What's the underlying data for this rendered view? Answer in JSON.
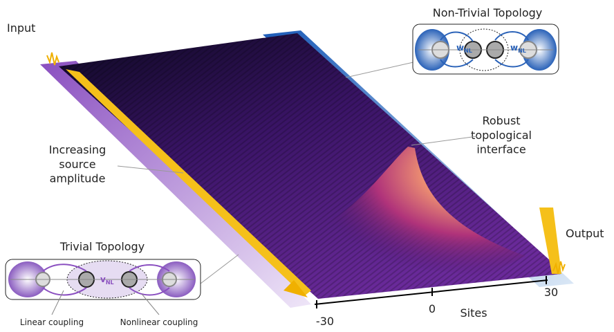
{
  "labels": {
    "input": "Input",
    "output": "Output",
    "interface": [
      "Robust",
      "topological",
      "interface"
    ],
    "amplitude": [
      "Increasing",
      "source",
      "amplitude"
    ]
  },
  "nontrivial": {
    "title": "Non-Trivial Topology",
    "coupling": {
      "main": "w",
      "sub": "NL"
    }
  },
  "trivial": {
    "title": "Trivial Topology",
    "coupling": {
      "main": "v",
      "sub": "NL"
    },
    "linear": "Linear coupling",
    "nonlinear": "Nonlinear coupling"
  },
  "axis": {
    "title": "Sites",
    "ticks": [
      "-30",
      "0",
      "30"
    ]
  }
}
